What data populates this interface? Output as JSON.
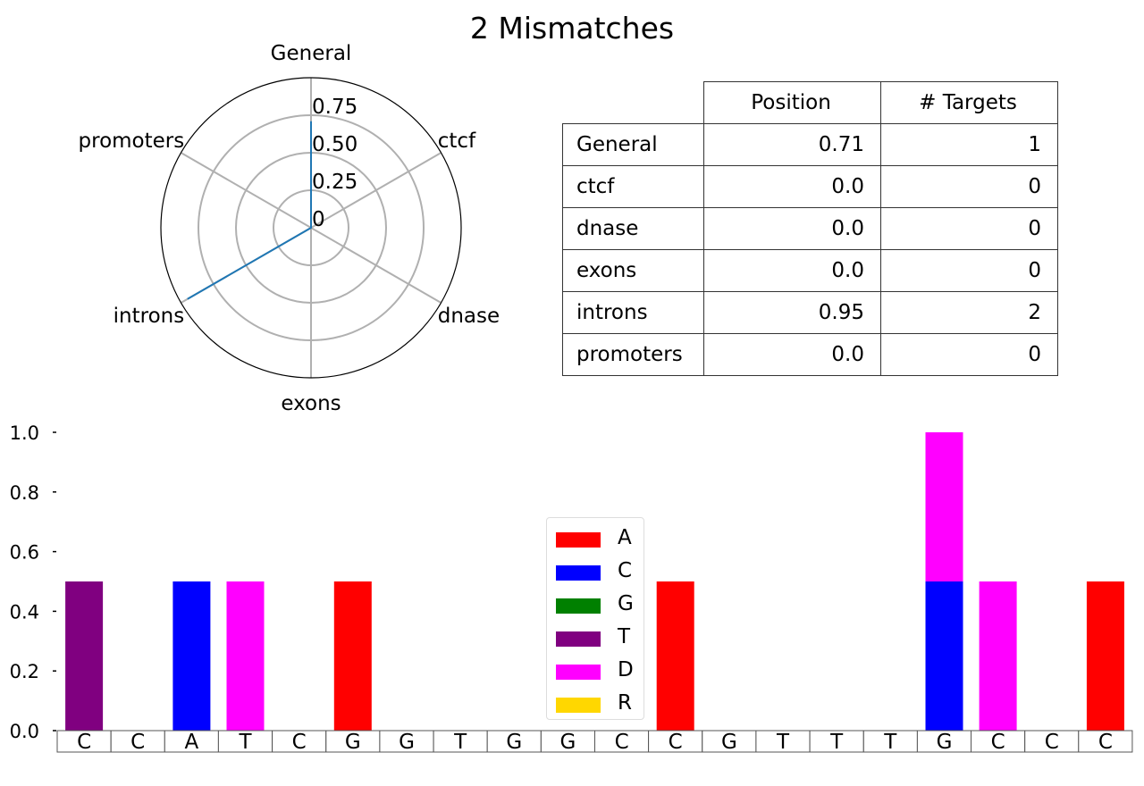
{
  "title": "2 Mismatches",
  "radar": {
    "categories": [
      "General",
      "ctcf",
      "dnase",
      "exons",
      "introns",
      "promoters"
    ],
    "values": [
      0.71,
      0.0,
      0.0,
      0.0,
      0.95,
      0.0
    ],
    "rmax": 1.0,
    "rticks": [
      0,
      0.25,
      0.5,
      0.75
    ],
    "rtick_labels": [
      "0",
      "0.25",
      "0.50",
      "0.75"
    ],
    "line_color": "#1f77b4",
    "grid_color": "#b0b0b0"
  },
  "table": {
    "headers": [
      "",
      "Position",
      "# Targets"
    ],
    "rows": [
      {
        "label": "General",
        "position": "0.71",
        "targets": "1"
      },
      {
        "label": "ctcf",
        "position": "0.0",
        "targets": "0"
      },
      {
        "label": "dnase",
        "position": "0.0",
        "targets": "0"
      },
      {
        "label": "exons",
        "position": "0.0",
        "targets": "0"
      },
      {
        "label": "introns",
        "position": "0.95",
        "targets": "2"
      },
      {
        "label": "promoters",
        "position": "0.0",
        "targets": "0"
      }
    ]
  },
  "chart_data": {
    "type": "bar",
    "stacked": true,
    "categories": [
      "C",
      "C",
      "A",
      "T",
      "C",
      "G",
      "G",
      "T",
      "G",
      "G",
      "C",
      "C",
      "G",
      "T",
      "T",
      "T",
      "G",
      "C",
      "C",
      "C"
    ],
    "series": [
      {
        "name": "A",
        "color": "#ff0000",
        "values": [
          0,
          0,
          0,
          0,
          0,
          0.5,
          0,
          0,
          0,
          0,
          0,
          0.5,
          0,
          0,
          0,
          0,
          0,
          0,
          0,
          0.5
        ]
      },
      {
        "name": "C",
        "color": "#0000ff",
        "values": [
          0,
          0,
          0.5,
          0,
          0,
          0,
          0,
          0,
          0,
          0,
          0,
          0,
          0,
          0,
          0,
          0,
          0.5,
          0,
          0,
          0
        ]
      },
      {
        "name": "G",
        "color": "#008000",
        "values": [
          0,
          0,
          0,
          0,
          0,
          0,
          0,
          0,
          0,
          0,
          0,
          0,
          0,
          0,
          0,
          0,
          0,
          0,
          0,
          0
        ]
      },
      {
        "name": "T",
        "color": "#800080",
        "values": [
          0.5,
          0,
          0,
          0,
          0,
          0,
          0,
          0,
          0,
          0,
          0,
          0,
          0,
          0,
          0,
          0,
          0,
          0,
          0,
          0
        ]
      },
      {
        "name": "D",
        "color": "#ff00ff",
        "values": [
          0,
          0,
          0,
          0.5,
          0,
          0,
          0,
          0,
          0,
          0,
          0,
          0,
          0,
          0,
          0,
          0,
          0.5,
          0.5,
          0,
          0
        ]
      },
      {
        "name": "R",
        "color": "#ffd700",
        "values": [
          0,
          0,
          0,
          0,
          0,
          0,
          0,
          0,
          0,
          0,
          0,
          0,
          0,
          0,
          0,
          0,
          0,
          0,
          0,
          0
        ]
      }
    ],
    "ylim": [
      0,
      1.0
    ],
    "yticks": [
      "0.0",
      "0.2",
      "0.4",
      "0.6",
      "0.8",
      "1.0"
    ],
    "legend_position": "center"
  }
}
